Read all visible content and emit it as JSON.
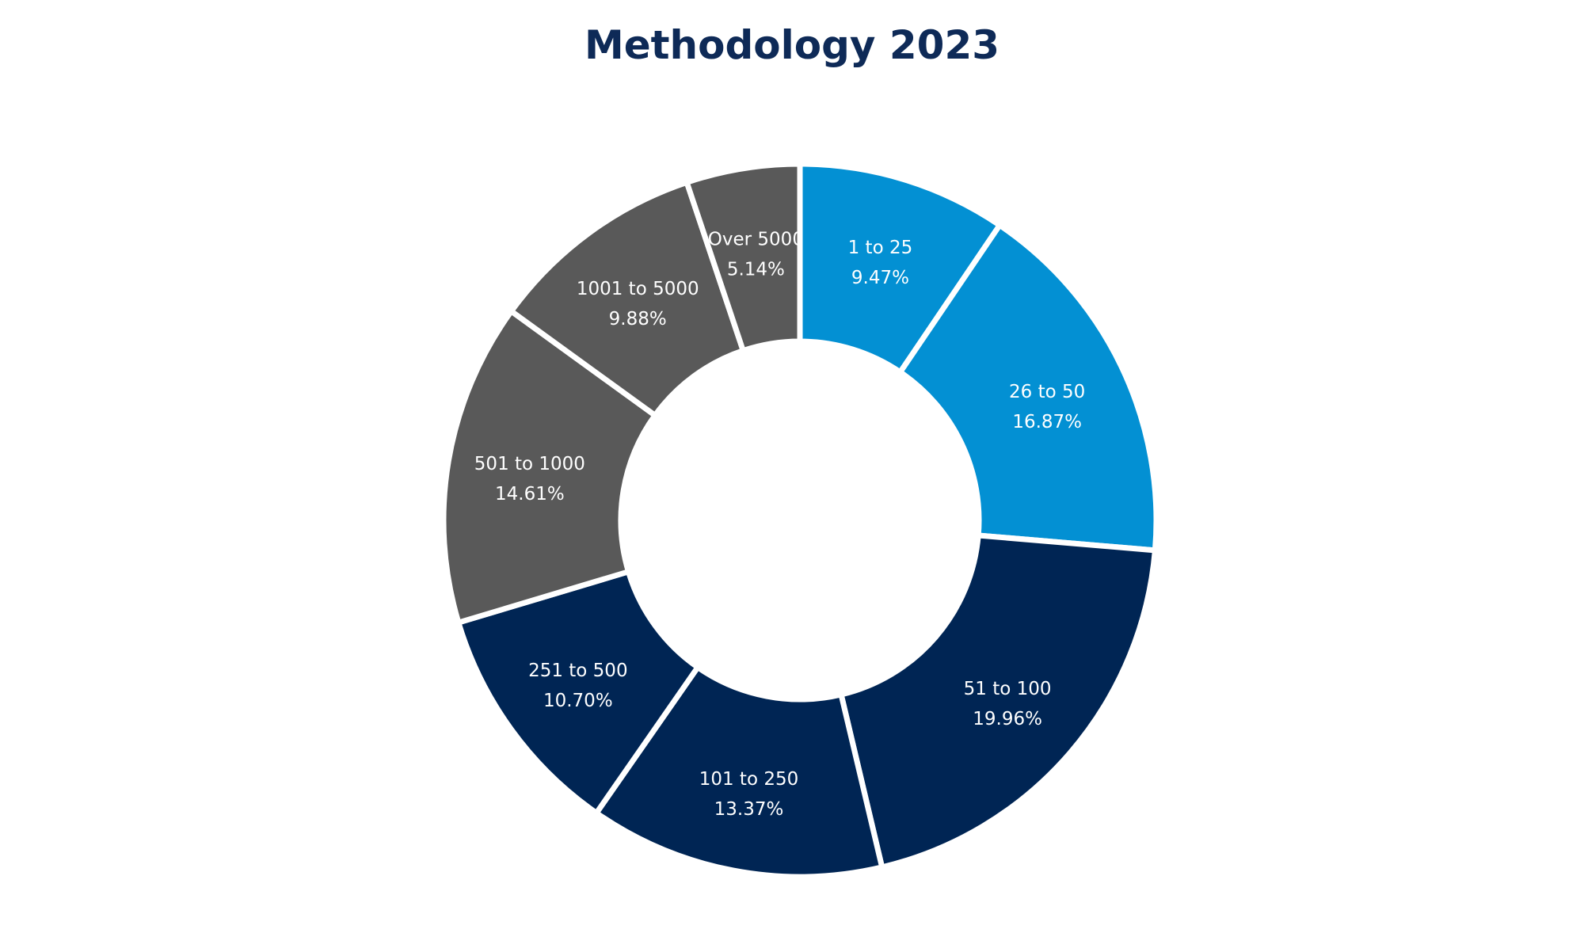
{
  "chart_data": {
    "type": "pie",
    "variant": "donut",
    "title": "Methodology 2023",
    "legend": "none",
    "slices": [
      {
        "label": "1 to 25",
        "value": 9.47,
        "display": "9.47%",
        "color": "#0390d3"
      },
      {
        "label": "26 to 50",
        "value": 16.87,
        "display": "16.87%",
        "color": "#0390d3"
      },
      {
        "label": "51 to 100",
        "value": 19.96,
        "display": "19.96%",
        "color": "#002554"
      },
      {
        "label": "101 to 250",
        "value": 13.37,
        "display": "13.37%",
        "color": "#002554"
      },
      {
        "label": "251 to 500",
        "value": 10.7,
        "display": "10.70%",
        "color": "#002554"
      },
      {
        "label": "501 to 1000",
        "value": 14.61,
        "display": "14.61%",
        "color": "#595959"
      },
      {
        "label": "1001 to 5000",
        "value": 9.88,
        "display": "9.88%",
        "color": "#595959"
      },
      {
        "label": "Over 5000",
        "value": 5.14,
        "display": "5.14%",
        "color": "#595959"
      }
    ],
    "colors": {
      "title": "#0e2a57",
      "separator": "#ffffff",
      "label_text": "#ffffff"
    }
  }
}
